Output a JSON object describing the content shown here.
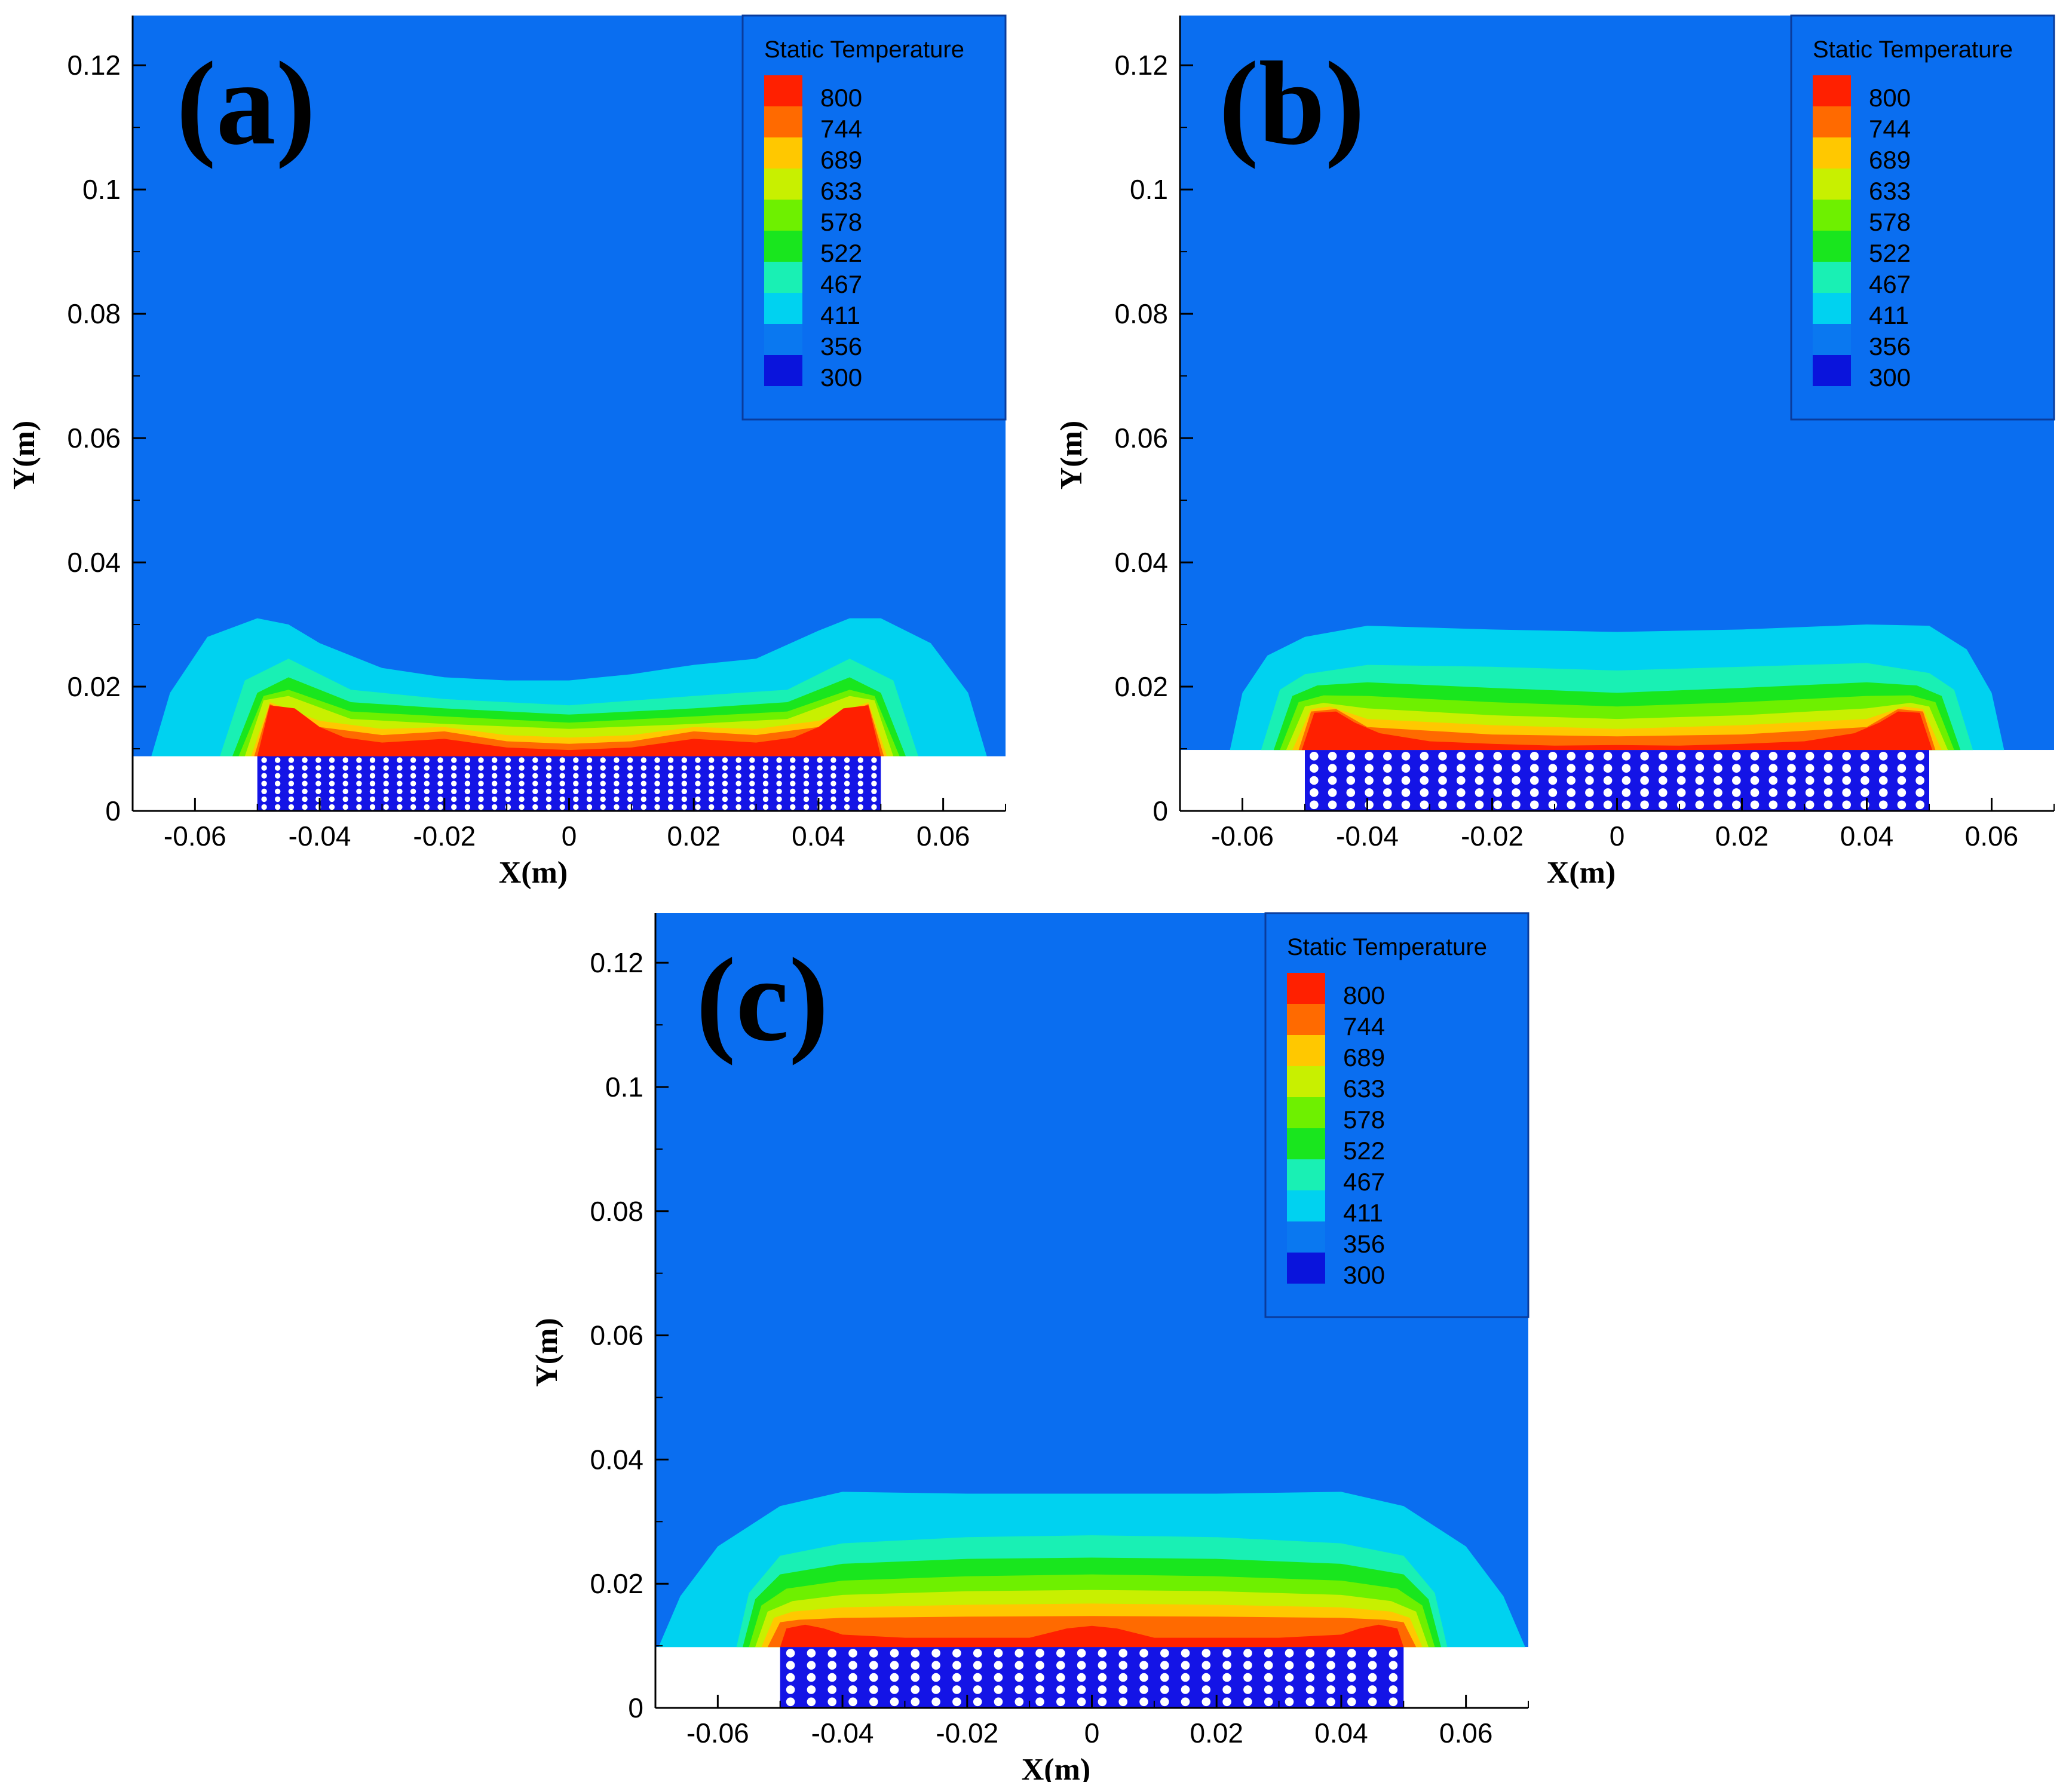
{
  "figure": {
    "panels": [
      {
        "label": "(a)",
        "variant": "a"
      },
      {
        "label": "(b)",
        "variant": "b"
      },
      {
        "label": "(c)",
        "variant": "c"
      }
    ]
  },
  "chart_data": {
    "type": "heatmap",
    "title": "",
    "xlabel": "X(m)",
    "ylabel": "Y(m)",
    "xlim": [
      -0.07,
      0.07
    ],
    "ylim": [
      0,
      0.128
    ],
    "x_ticks": [
      "-0.06",
      "-0.04",
      "-0.02",
      "0",
      "0.02",
      "0.04",
      "0.06"
    ],
    "x_tick_values": [
      -0.06,
      -0.04,
      -0.02,
      0,
      0.02,
      0.04,
      0.06
    ],
    "y_ticks": [
      "0",
      "0.02",
      "0.04",
      "0.06",
      "0.08",
      "0.1",
      "0.12"
    ],
    "y_tick_values": [
      0,
      0.02,
      0.04,
      0.06,
      0.08,
      0.1,
      0.12
    ],
    "legend": {
      "title": "Static Temperature",
      "position": "top-right",
      "levels": [
        "800",
        "744",
        "689",
        "633",
        "578",
        "522",
        "467",
        "411",
        "356",
        "300"
      ],
      "colors": [
        "#ff2000",
        "#ff6a00",
        "#ffc800",
        "#c8f000",
        "#6ef000",
        "#19e61e",
        "#19f0b4",
        "#00d2f0",
        "#0a78f0",
        "#0a14dc"
      ]
    },
    "background_color": "#0a6ef0",
    "bed": {
      "x_range": [
        -0.05,
        0.05
      ],
      "top_y": 0.0095,
      "fill": "#1414e6"
    },
    "series": [
      {
        "name": "(a)",
        "ambient_temperature": 356,
        "bed_top_y": 0.0088,
        "contours": [
          {
            "level": 411,
            "color": "#00d2f0",
            "x": [
              -0.067,
              -0.064,
              -0.058,
              -0.05,
              -0.045,
              -0.04,
              -0.03,
              -0.02,
              -0.01,
              0,
              0.01,
              0.02,
              0.03,
              0.04,
              0.045,
              0.05,
              0.058,
              0.064,
              0.067
            ],
            "y": [
              0.0088,
              0.019,
              0.028,
              0.031,
              0.03,
              0.027,
              0.023,
              0.0215,
              0.021,
              0.021,
              0.022,
              0.0235,
              0.0245,
              0.029,
              0.031,
              0.031,
              0.027,
              0.019,
              0.0088
            ]
          },
          {
            "level": 467,
            "color": "#19f0b4",
            "x": [
              -0.056,
              -0.052,
              -0.045,
              -0.035,
              -0.02,
              0,
              0.02,
              0.035,
              0.045,
              0.052,
              0.056
            ],
            "y": [
              0.0088,
              0.021,
              0.0245,
              0.0195,
              0.018,
              0.017,
              0.0185,
              0.0195,
              0.0245,
              0.021,
              0.0088
            ]
          },
          {
            "level": 522,
            "color": "#19e61e",
            "x": [
              -0.054,
              -0.05,
              -0.045,
              -0.035,
              -0.02,
              0,
              0.02,
              0.035,
              0.045,
              0.05,
              0.054
            ],
            "y": [
              0.0088,
              0.019,
              0.0215,
              0.0175,
              0.0165,
              0.0155,
              0.0165,
              0.0175,
              0.0215,
              0.019,
              0.0088
            ]
          },
          {
            "level": 578,
            "color": "#6ef000",
            "x": [
              -0.053,
              -0.049,
              -0.045,
              -0.035,
              -0.02,
              0,
              0.02,
              0.035,
              0.045,
              0.049,
              0.053
            ],
            "y": [
              0.0088,
              0.0185,
              0.0195,
              0.016,
              0.0152,
              0.0142,
              0.0152,
              0.016,
              0.0195,
              0.0185,
              0.0088
            ]
          },
          {
            "level": 633,
            "color": "#c8f000",
            "x": [
              -0.052,
              -0.049,
              -0.045,
              -0.035,
              -0.02,
              0,
              0.02,
              0.035,
              0.045,
              0.049,
              0.052
            ],
            "y": [
              0.0088,
              0.0178,
              0.0185,
              0.0148,
              0.014,
              0.0132,
              0.014,
              0.0148,
              0.0185,
              0.0178,
              0.0088
            ]
          },
          {
            "level": 689,
            "color": "#ffc800",
            "x": [
              -0.051,
              -0.048,
              -0.04,
              -0.03,
              -0.02,
              -0.01,
              0,
              0.01,
              0.02,
              0.03,
              0.04,
              0.048,
              0.051
            ],
            "y": [
              0.0088,
              0.0175,
              0.0145,
              0.0132,
              0.0135,
              0.0122,
              0.0118,
              0.0122,
              0.0135,
              0.0132,
              0.0145,
              0.0175,
              0.0088
            ]
          },
          {
            "level": 744,
            "color": "#ff6a00",
            "x": [
              -0.0505,
              -0.048,
              -0.04,
              -0.03,
              -0.02,
              -0.01,
              0,
              0.01,
              0.02,
              0.03,
              0.04,
              0.048,
              0.0505
            ],
            "y": [
              0.0088,
              0.0172,
              0.0135,
              0.0122,
              0.0128,
              0.0112,
              0.0108,
              0.0112,
              0.0128,
              0.0122,
              0.0135,
              0.0172,
              0.0088
            ]
          },
          {
            "level": 800,
            "color": "#ff2000",
            "x": [
              -0.05,
              -0.048,
              -0.044,
              -0.04,
              -0.036,
              -0.03,
              -0.02,
              -0.01,
              0,
              0.01,
              0.02,
              0.03,
              0.036,
              0.04,
              0.044,
              0.048,
              0.05
            ],
            "y": [
              0.0088,
              0.017,
              0.0165,
              0.0135,
              0.0118,
              0.011,
              0.0116,
              0.0102,
              0.0098,
              0.0102,
              0.0116,
              0.011,
              0.0118,
              0.0135,
              0.0165,
              0.017,
              0.0088
            ]
          }
        ]
      },
      {
        "name": "(b)",
        "ambient_temperature": 356,
        "bed_top_y": 0.0098,
        "contours": [
          {
            "level": 411,
            "color": "#00d2f0",
            "x": [
              -0.062,
              -0.06,
              -0.056,
              -0.05,
              -0.04,
              -0.02,
              0,
              0.02,
              0.04,
              0.05,
              0.056,
              0.06,
              0.062
            ],
            "y": [
              0.0098,
              0.019,
              0.025,
              0.028,
              0.0298,
              0.0292,
              0.0288,
              0.0292,
              0.03,
              0.0298,
              0.026,
              0.019,
              0.0098
            ]
          },
          {
            "level": 467,
            "color": "#19f0b4",
            "x": [
              -0.057,
              -0.054,
              -0.05,
              -0.04,
              -0.02,
              0,
              0.02,
              0.04,
              0.05,
              0.054,
              0.057
            ],
            "y": [
              0.0098,
              0.0195,
              0.022,
              0.0235,
              0.0232,
              0.0226,
              0.0232,
              0.0238,
              0.0222,
              0.0195,
              0.0098
            ]
          },
          {
            "level": 522,
            "color": "#19e61e",
            "x": [
              -0.055,
              -0.052,
              -0.048,
              -0.04,
              -0.02,
              0,
              0.02,
              0.04,
              0.048,
              0.052,
              0.055
            ],
            "y": [
              0.0098,
              0.0185,
              0.0202,
              0.0207,
              0.0198,
              0.019,
              0.0198,
              0.0207,
              0.0202,
              0.0185,
              0.0098
            ]
          },
          {
            "level": 578,
            "color": "#6ef000",
            "x": [
              -0.054,
              -0.051,
              -0.047,
              -0.04,
              -0.02,
              0,
              0.02,
              0.04,
              0.047,
              0.051,
              0.054
            ],
            "y": [
              0.0098,
              0.0175,
              0.0186,
              0.0185,
              0.0175,
              0.0168,
              0.0175,
              0.0185,
              0.0186,
              0.0175,
              0.0098
            ]
          },
          {
            "level": 633,
            "color": "#c8f000",
            "x": [
              -0.053,
              -0.05,
              -0.047,
              -0.04,
              -0.02,
              0,
              0.02,
              0.04,
              0.047,
              0.05,
              0.053
            ],
            "y": [
              0.0098,
              0.0168,
              0.0174,
              0.0165,
              0.0154,
              0.0148,
              0.0154,
              0.0165,
              0.0174,
              0.0168,
              0.0098
            ]
          },
          {
            "level": 689,
            "color": "#ffc800",
            "x": [
              -0.052,
              -0.049,
              -0.046,
              -0.04,
              -0.02,
              0,
              0.02,
              0.04,
              0.046,
              0.049,
              0.052
            ],
            "y": [
              0.0098,
              0.0164,
              0.0168,
              0.0148,
              0.0138,
              0.0132,
              0.0138,
              0.0148,
              0.0168,
              0.0164,
              0.0098
            ]
          },
          {
            "level": 744,
            "color": "#ff6a00",
            "x": [
              -0.051,
              -0.049,
              -0.045,
              -0.04,
              -0.02,
              0,
              0.02,
              0.04,
              0.045,
              0.049,
              0.051
            ],
            "y": [
              0.0098,
              0.016,
              0.0164,
              0.0135,
              0.0123,
              0.012,
              0.0123,
              0.0135,
              0.0164,
              0.016,
              0.0098
            ]
          },
          {
            "level": 800,
            "color": "#ff2000",
            "x": [
              -0.0505,
              -0.0485,
              -0.045,
              -0.042,
              -0.038,
              -0.03,
              -0.02,
              -0.01,
              0,
              0.01,
              0.02,
              0.03,
              0.038,
              0.042,
              0.045,
              0.0485,
              0.0505
            ],
            "y": [
              0.0098,
              0.0158,
              0.016,
              0.0142,
              0.0125,
              0.0112,
              0.0108,
              0.0105,
              0.0106,
              0.0105,
              0.0108,
              0.0112,
              0.0125,
              0.0142,
              0.016,
              0.0158,
              0.0098
            ]
          }
        ]
      },
      {
        "name": "(c)",
        "ambient_temperature": 356,
        "bed_top_y": 0.0098,
        "contours": [
          {
            "level": 411,
            "color": "#00d2f0",
            "x": [
              -0.0695,
              -0.066,
              -0.06,
              -0.05,
              -0.04,
              -0.02,
              0,
              0.02,
              0.04,
              0.05,
              0.06,
              0.066,
              0.0695
            ],
            "y": [
              0.0098,
              0.018,
              0.026,
              0.0325,
              0.0348,
              0.0345,
              0.0345,
              0.0345,
              0.0348,
              0.0325,
              0.026,
              0.018,
              0.0098
            ]
          },
          {
            "level": 467,
            "color": "#19f0b4",
            "x": [
              -0.057,
              -0.055,
              -0.05,
              -0.04,
              -0.02,
              0,
              0.02,
              0.04,
              0.05,
              0.055,
              0.057
            ],
            "y": [
              0.0098,
              0.0185,
              0.0245,
              0.0265,
              0.0275,
              0.0278,
              0.0275,
              0.0265,
              0.0245,
              0.0185,
              0.0098
            ]
          },
          {
            "level": 522,
            "color": "#19e61e",
            "x": [
              -0.056,
              -0.054,
              -0.05,
              -0.04,
              -0.02,
              0,
              0.02,
              0.04,
              0.05,
              0.054,
              0.056
            ],
            "y": [
              0.0098,
              0.0175,
              0.0215,
              0.0232,
              0.024,
              0.0242,
              0.024,
              0.0232,
              0.0215,
              0.0175,
              0.0098
            ]
          },
          {
            "level": 578,
            "color": "#6ef000",
            "x": [
              -0.055,
              -0.053,
              -0.049,
              -0.04,
              -0.02,
              0,
              0.02,
              0.04,
              0.049,
              0.053,
              0.055
            ],
            "y": [
              0.0098,
              0.0165,
              0.0192,
              0.0205,
              0.0212,
              0.0215,
              0.0212,
              0.0205,
              0.0192,
              0.0165,
              0.0098
            ]
          },
          {
            "level": 633,
            "color": "#c8f000",
            "x": [
              -0.054,
              -0.052,
              -0.048,
              -0.04,
              -0.02,
              0,
              0.02,
              0.04,
              0.048,
              0.052,
              0.054
            ],
            "y": [
              0.0098,
              0.0155,
              0.0172,
              0.0182,
              0.0188,
              0.019,
              0.0188,
              0.0182,
              0.0172,
              0.0155,
              0.0098
            ]
          },
          {
            "level": 689,
            "color": "#ffc800",
            "x": [
              -0.053,
              -0.051,
              -0.048,
              -0.04,
              -0.02,
              0,
              0.02,
              0.04,
              0.048,
              0.051,
              0.053
            ],
            "y": [
              0.0098,
              0.0145,
              0.0155,
              0.0162,
              0.0166,
              0.0168,
              0.0166,
              0.0162,
              0.0155,
              0.0145,
              0.0098
            ]
          },
          {
            "level": 744,
            "color": "#ff6a00",
            "x": [
              -0.052,
              -0.05,
              -0.047,
              -0.04,
              -0.02,
              0,
              0.02,
              0.04,
              0.047,
              0.05,
              0.052
            ],
            "y": [
              0.0098,
              0.0138,
              0.0142,
              0.0145,
              0.0147,
              0.0148,
              0.0147,
              0.0145,
              0.0142,
              0.0138,
              0.0098
            ]
          },
          {
            "level": 800,
            "color": "#ff2000",
            "x": [
              -0.05,
              -0.049,
              -0.046,
              -0.043,
              -0.04,
              -0.03,
              -0.01,
              -0.004,
              0,
              0.004,
              0.01,
              0.03,
              0.04,
              0.043,
              0.046,
              0.049,
              0.05
            ],
            "y": [
              0.0098,
              0.0128,
              0.0134,
              0.0128,
              0.0118,
              0.0113,
              0.0113,
              0.0128,
              0.0132,
              0.0128,
              0.0113,
              0.0113,
              0.0118,
              0.0128,
              0.0134,
              0.0128,
              0.0098
            ]
          }
        ]
      }
    ]
  }
}
